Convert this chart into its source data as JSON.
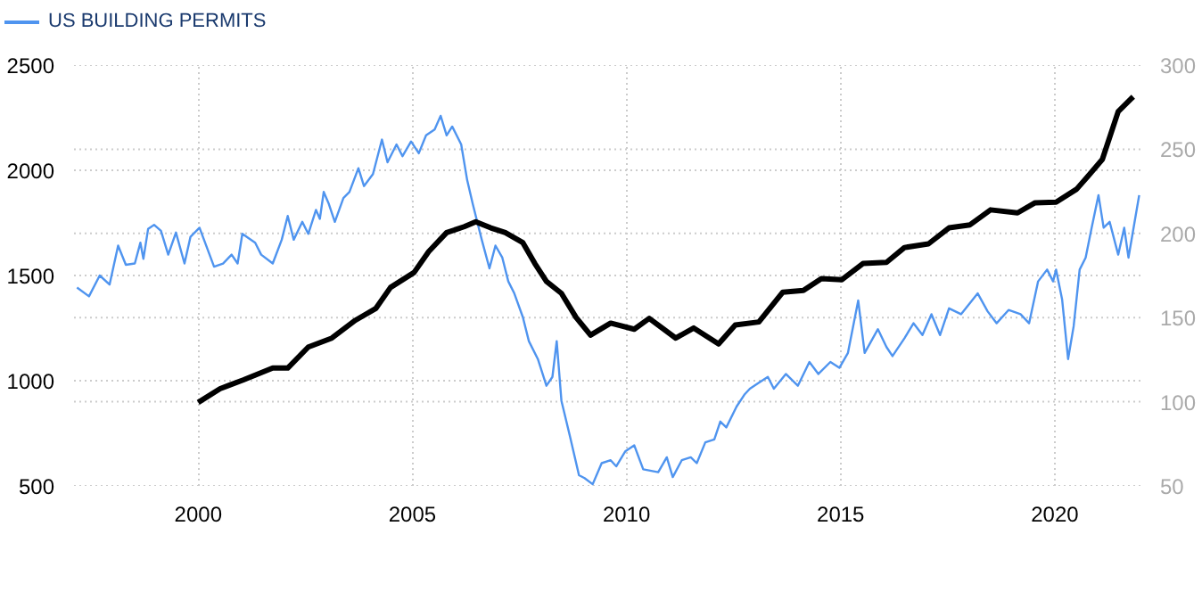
{
  "chart_data": {
    "type": "line",
    "xlim": [
      1997.1,
      2022.0
    ],
    "xticks": [
      2000,
      2005,
      2010,
      2015,
      2020
    ],
    "ylim": [
      500,
      2500
    ],
    "yticks": [
      500,
      1000,
      1500,
      2000,
      2500
    ],
    "y2lim": [
      50,
      300
    ],
    "y2ticks": [
      50,
      100,
      150,
      200,
      250,
      300
    ],
    "grid": true,
    "legend": "top left",
    "series": [
      {
        "name": "US BUILDING PERMITS",
        "color": "#4f94ef",
        "x": [
          1997.17,
          1997.45,
          1997.7,
          1997.93,
          1998.13,
          1998.31,
          1998.52,
          1998.65,
          1998.72,
          1998.83,
          1998.97,
          1999.13,
          1999.3,
          1999.48,
          1999.68,
          1999.82,
          2000.03,
          2000.37,
          2000.58,
          2000.78,
          2000.92,
          2001.03,
          2001.33,
          2001.47,
          2001.74,
          2001.95,
          2002.09,
          2002.23,
          2002.43,
          2002.57,
          2002.75,
          2002.84,
          2002.93,
          2003.05,
          2003.19,
          2003.39,
          2003.53,
          2003.74,
          2003.87,
          2004.08,
          2004.29,
          2004.42,
          2004.63,
          2004.77,
          2004.97,
          2005.15,
          2005.32,
          2005.52,
          2005.66,
          2005.8,
          2005.93,
          2006.14,
          2006.28,
          2006.41,
          2006.62,
          2006.8,
          2006.94,
          2007.1,
          2007.24,
          2007.38,
          2007.58,
          2007.72,
          2007.93,
          2008.13,
          2008.27,
          2008.37,
          2008.48,
          2008.68,
          2008.89,
          2009.02,
          2009.21,
          2009.42,
          2009.63,
          2009.76,
          2009.97,
          2010.18,
          2010.39,
          2010.74,
          2010.94,
          2011.08,
          2011.29,
          2011.5,
          2011.64,
          2011.84,
          2012.05,
          2012.19,
          2012.33,
          2012.57,
          2012.75,
          2012.88,
          2013.09,
          2013.3,
          2013.44,
          2013.72,
          2014.0,
          2014.27,
          2014.48,
          2014.76,
          2014.97,
          2015.17,
          2015.41,
          2015.56,
          2015.87,
          2016.07,
          2016.21,
          2016.49,
          2016.7,
          2016.91,
          2017.12,
          2017.32,
          2017.53,
          2017.81,
          2018.2,
          2018.43,
          2018.64,
          2018.92,
          2019.2,
          2019.4,
          2019.61,
          2019.82,
          2019.96,
          2020.03,
          2020.17,
          2020.31,
          2020.44,
          2020.58,
          2020.72,
          2020.86,
          2021.02,
          2021.14,
          2021.28,
          2021.48,
          2021.62,
          2021.72,
          2021.97
        ],
        "values": [
          1443,
          1401,
          1500,
          1457,
          1642,
          1551,
          1557,
          1656,
          1579,
          1721,
          1741,
          1712,
          1599,
          1704,
          1557,
          1684,
          1727,
          1542,
          1557,
          1599,
          1557,
          1698,
          1656,
          1599,
          1557,
          1670,
          1783,
          1670,
          1755,
          1698,
          1812,
          1769,
          1897,
          1840,
          1755,
          1868,
          1897,
          2010,
          1925,
          1982,
          2146,
          2038,
          2123,
          2067,
          2137,
          2081,
          2166,
          2194,
          2259,
          2166,
          2208,
          2123,
          1953,
          1840,
          1670,
          1534,
          1642,
          1585,
          1472,
          1415,
          1302,
          1188,
          1103,
          976,
          1018,
          1188,
          905,
          735,
          551,
          537,
          508,
          608,
          622,
          593,
          664,
          693,
          579,
          565,
          636,
          542,
          622,
          636,
          608,
          707,
          721,
          806,
          778,
          877,
          933,
          962,
          990,
          1018,
          962,
          1032,
          976,
          1089,
          1032,
          1089,
          1061,
          1132,
          1381,
          1132,
          1245,
          1160,
          1117,
          1202,
          1273,
          1217,
          1316,
          1217,
          1344,
          1316,
          1415,
          1330,
          1273,
          1336,
          1316,
          1273,
          1472,
          1528,
          1472,
          1528,
          1387,
          1103,
          1259,
          1528,
          1585,
          1727,
          1882,
          1727,
          1755,
          1599,
          1727,
          1585,
          1882
        ]
      },
      {
        "color": "#000000",
        "axis": "y2",
        "x": [
          2000.0,
          2000.51,
          2001.06,
          2001.74,
          2002.09,
          2002.57,
          2003.12,
          2003.67,
          2004.15,
          2004.49,
          2005.04,
          2005.38,
          2005.8,
          2006.21,
          2006.48,
          2006.83,
          2007.17,
          2007.58,
          2007.86,
          2008.13,
          2008.48,
          2008.82,
          2009.16,
          2009.63,
          2010.18,
          2010.53,
          2011.15,
          2011.57,
          2012.15,
          2012.54,
          2013.09,
          2013.65,
          2014.13,
          2014.55,
          2015.03,
          2015.52,
          2016.07,
          2016.49,
          2017.05,
          2017.53,
          2018.02,
          2018.5,
          2019.13,
          2019.54,
          2020.03,
          2020.51,
          2020.79,
          2021.11,
          2021.48,
          2021.83
        ],
        "values": [
          99.6,
          107.7,
          113,
          120,
          120,
          132.5,
          137.8,
          148.4,
          155.5,
          167.9,
          176.8,
          189.2,
          200.5,
          204,
          206.9,
          203.3,
          200.5,
          194.5,
          182.1,
          171.5,
          164.4,
          150.2,
          139.6,
          146.7,
          143.1,
          149.5,
          137.8,
          143.8,
          134.3,
          145.6,
          147.4,
          165.1,
          166.1,
          173.2,
          172.5,
          182.1,
          182.8,
          191.6,
          193.8,
          203.3,
          205.1,
          214,
          212.2,
          218.2,
          218.6,
          226.3,
          234.5,
          244,
          272.4,
          281.2
        ]
      }
    ]
  }
}
